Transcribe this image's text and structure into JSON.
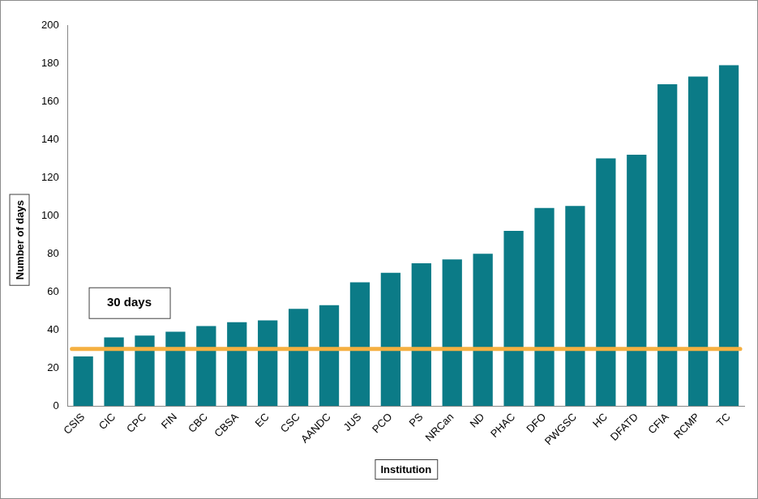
{
  "chart_data": {
    "type": "bar",
    "x_label": "Institution",
    "y_label": "Number of days",
    "categories": [
      "CSIS",
      "CIC",
      "CPC",
      "FIN",
      "CBC",
      "CBSA",
      "EC",
      "CSC",
      "AANDC",
      "JUS",
      "PCO",
      "PS",
      "NRCan",
      "ND",
      "PHAC",
      "DFO",
      "PWGSC",
      "HC",
      "DFATD",
      "CFIA",
      "RCMP",
      "TC"
    ],
    "values": [
      26,
      36,
      37,
      39,
      42,
      44,
      45,
      51,
      53,
      65,
      70,
      75,
      77,
      80,
      92,
      104,
      105,
      130,
      132,
      169,
      173,
      179
    ],
    "color": "#0b7b87",
    "ylim": [
      0,
      200
    ],
    "yticks": [
      0,
      20,
      40,
      60,
      80,
      100,
      120,
      140,
      160,
      180,
      200
    ],
    "grid": false,
    "reference_line": {
      "value": 30,
      "label": "30 days",
      "color": "#f5b041"
    }
  }
}
